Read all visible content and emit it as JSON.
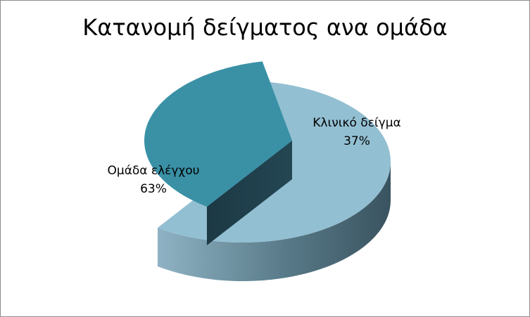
{
  "chart_data": {
    "type": "pie",
    "title": "Κατανομή δείγματος ανα ομάδα",
    "slices": [
      {
        "label": "Ομάδα ελέγχου",
        "value": 63,
        "pct_text": "63%",
        "color": "#93bfd2"
      },
      {
        "label": "Κλινικό δείγμα",
        "value": 37,
        "pct_text": "37%",
        "color": "#3a91a6"
      }
    ],
    "legend": "none",
    "style": "3d-exploded"
  }
}
